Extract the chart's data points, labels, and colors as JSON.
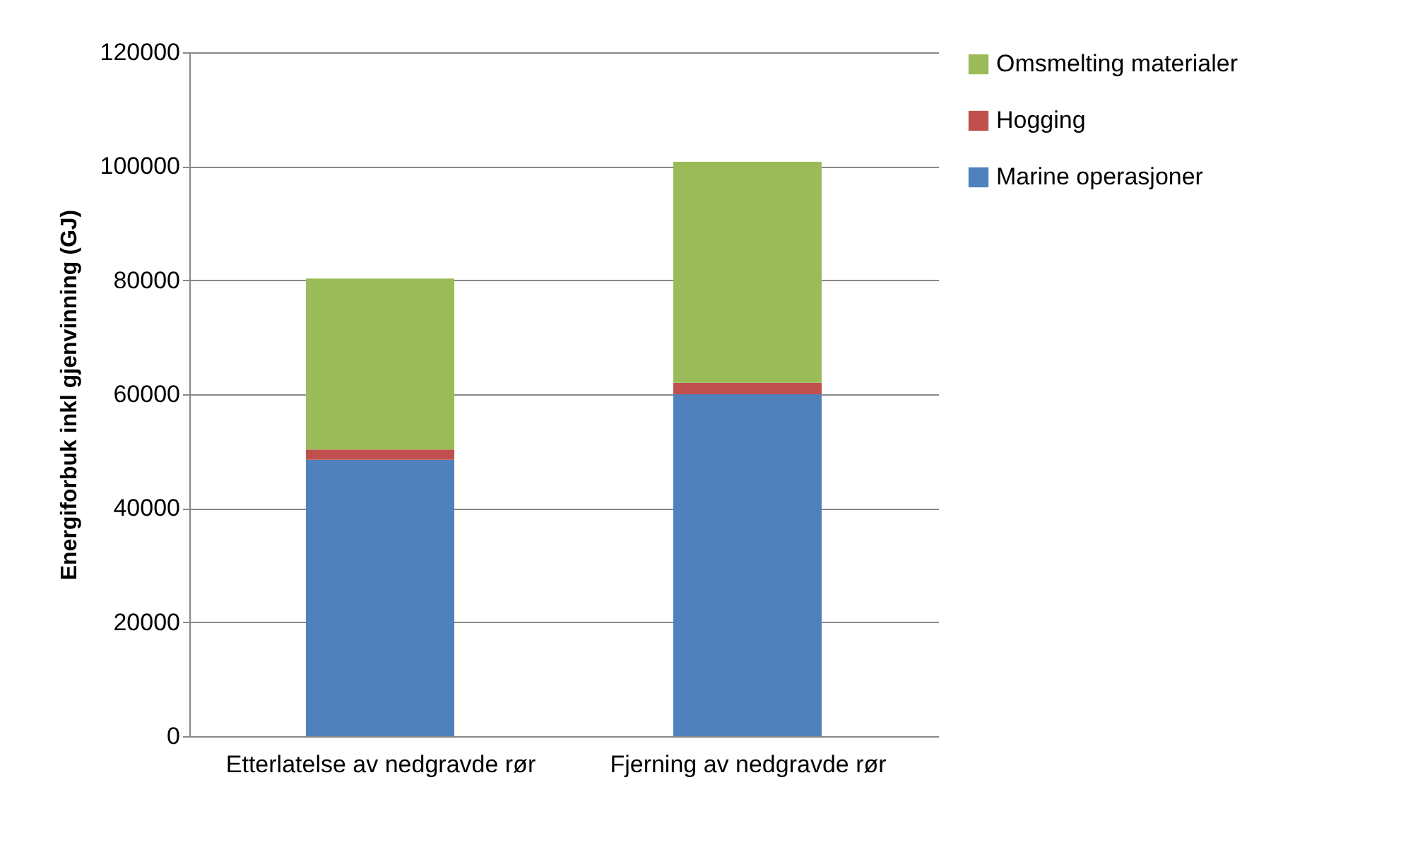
{
  "chart_data": {
    "type": "bar",
    "stacked": true,
    "ylabel": "Energiforbuk inkl gjenvinning (GJ)",
    "categories": [
      "Etterlatelse av nedgravde rør",
      "Fjerning av nedgravde rør"
    ],
    "series": [
      {
        "name": "Marine operasjoner",
        "color": "#4f81bd",
        "values": [
          48500,
          60000
        ]
      },
      {
        "name": "Hogging",
        "color": "#c0504d",
        "values": [
          1800,
          2000
        ]
      },
      {
        "name": "Omsmelting materialer",
        "color": "#9bbb59",
        "values": [
          30000,
          38800
        ]
      }
    ],
    "ylim": [
      0,
      120000
    ],
    "yticks": [
      0,
      20000,
      40000,
      60000,
      80000,
      100000,
      120000
    ],
    "grid": "y",
    "legend": "right"
  }
}
